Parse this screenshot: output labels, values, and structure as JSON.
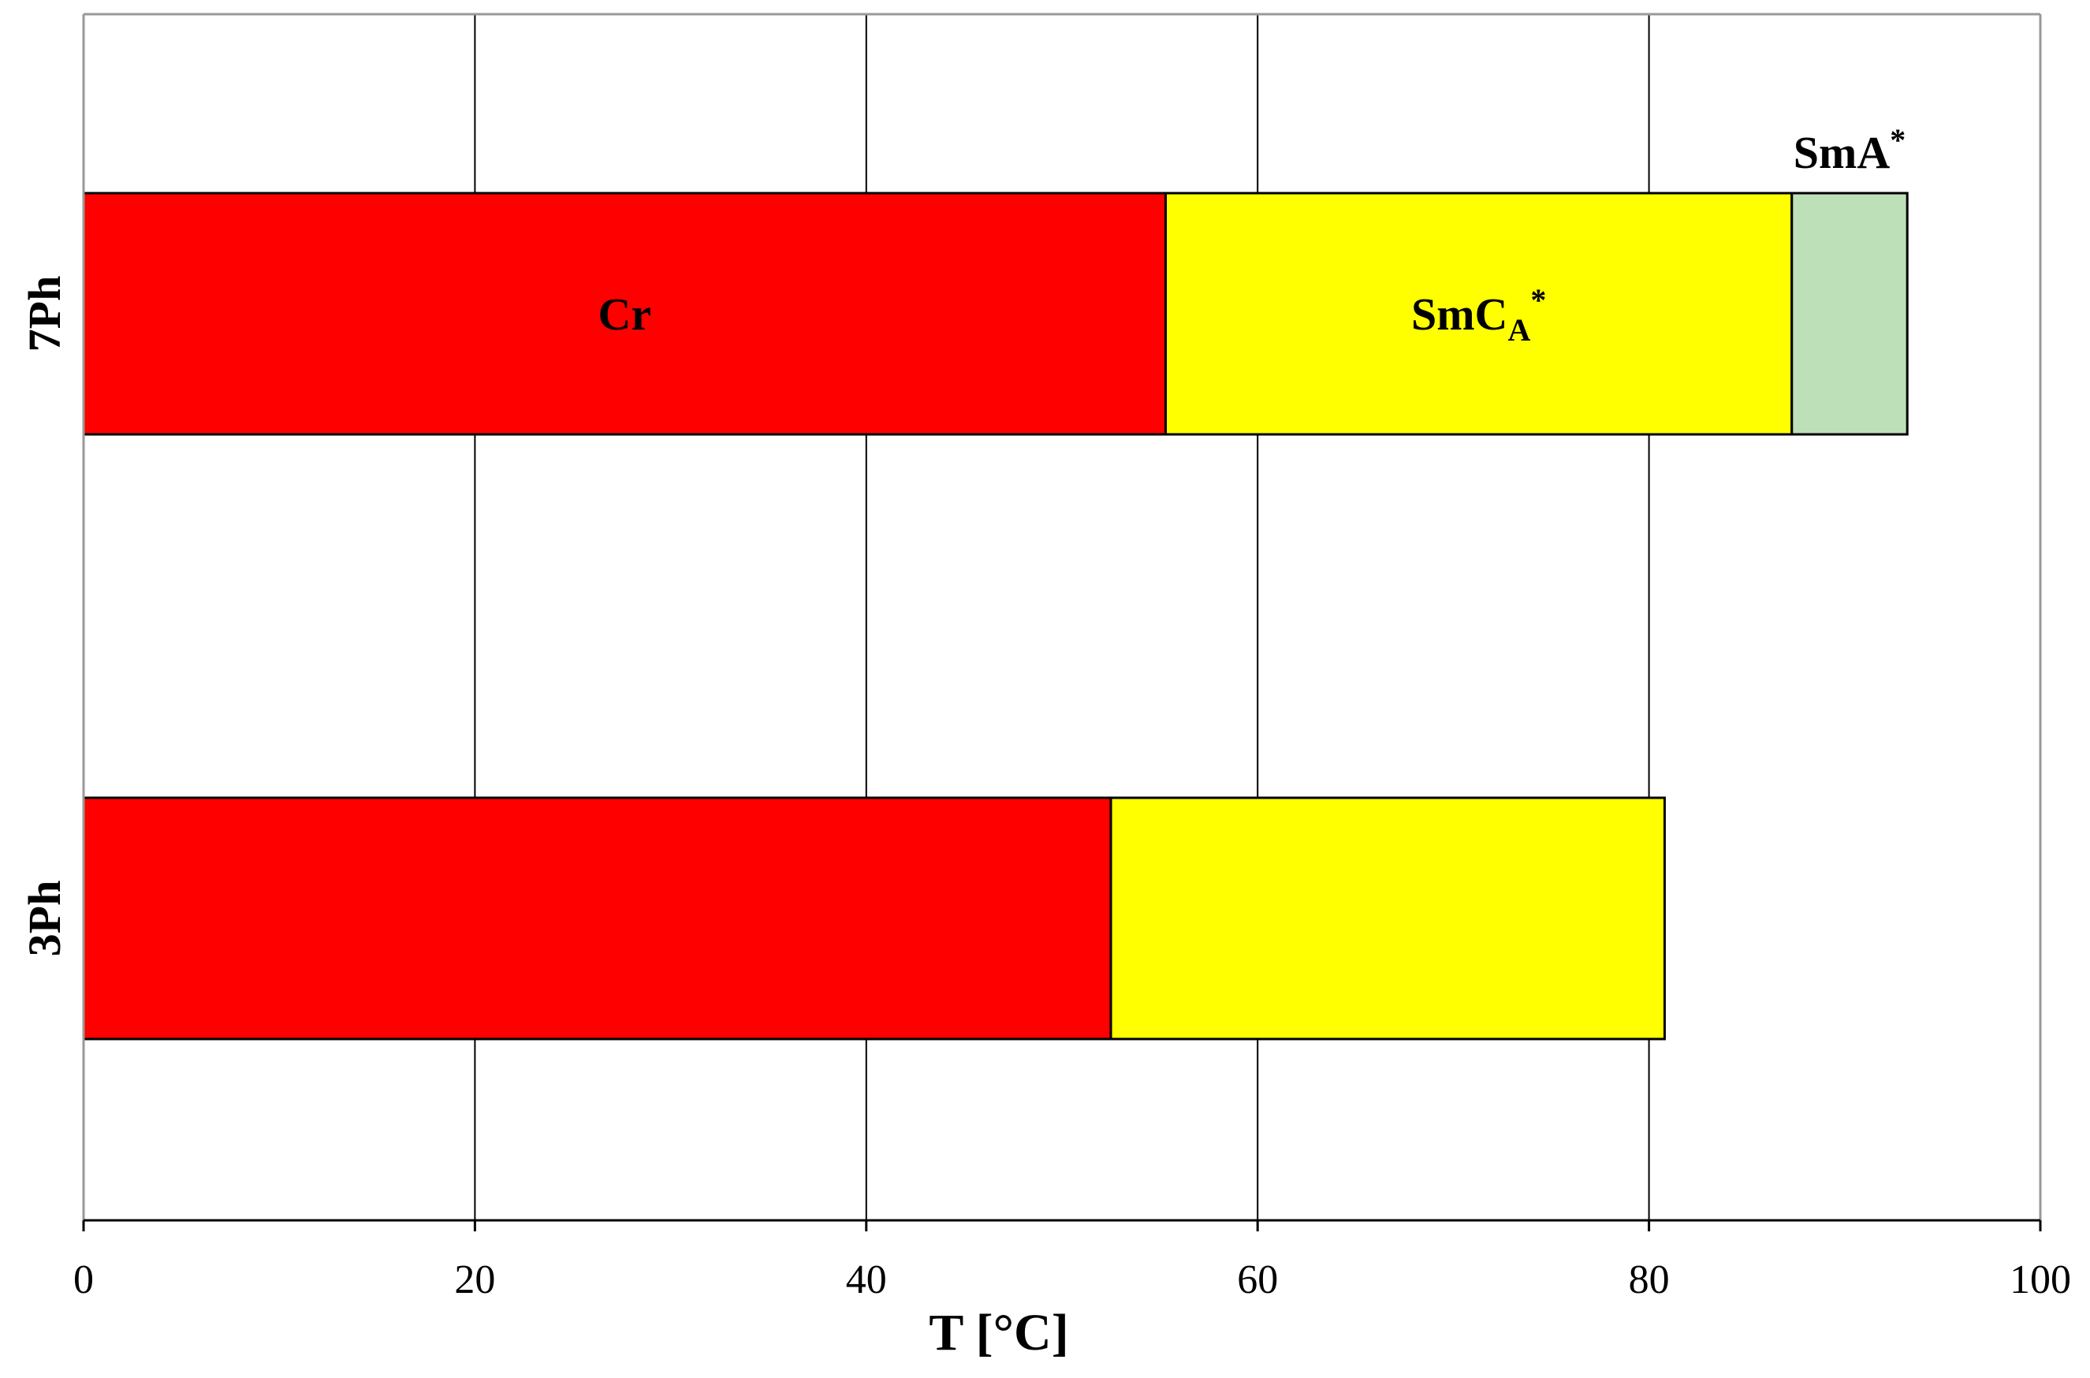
{
  "chart_data": {
    "type": "bar",
    "orientation": "horizontal",
    "stacked": true,
    "xlabel": "T [°C]",
    "ylabel": "",
    "xlim": [
      0,
      100
    ],
    "xticks": [
      0,
      20,
      40,
      60,
      80,
      100
    ],
    "grid": "vertical",
    "categories": [
      "7Ph",
      "3Ph"
    ],
    "series": [
      {
        "name": "Cr",
        "color": "#ff0000",
        "values": [
          55.3,
          52.5
        ]
      },
      {
        "name": "SmCA*",
        "color": "#ffff00",
        "values": [
          32.0,
          28.3
        ]
      },
      {
        "name": "SmA*",
        "color": "#bde0b8",
        "values": [
          5.9,
          0
        ]
      }
    ],
    "segment_labels": [
      {
        "category": "7Ph",
        "series": "Cr",
        "text": "Cr"
      },
      {
        "category": "7Ph",
        "series": "SmCA*",
        "text_main": "SmC",
        "text_sub": "A",
        "text_sup": "*"
      },
      {
        "category": "7Ph",
        "series": "SmA*",
        "text_main": "SmA",
        "text_sup": "*",
        "position": "above"
      }
    ]
  }
}
